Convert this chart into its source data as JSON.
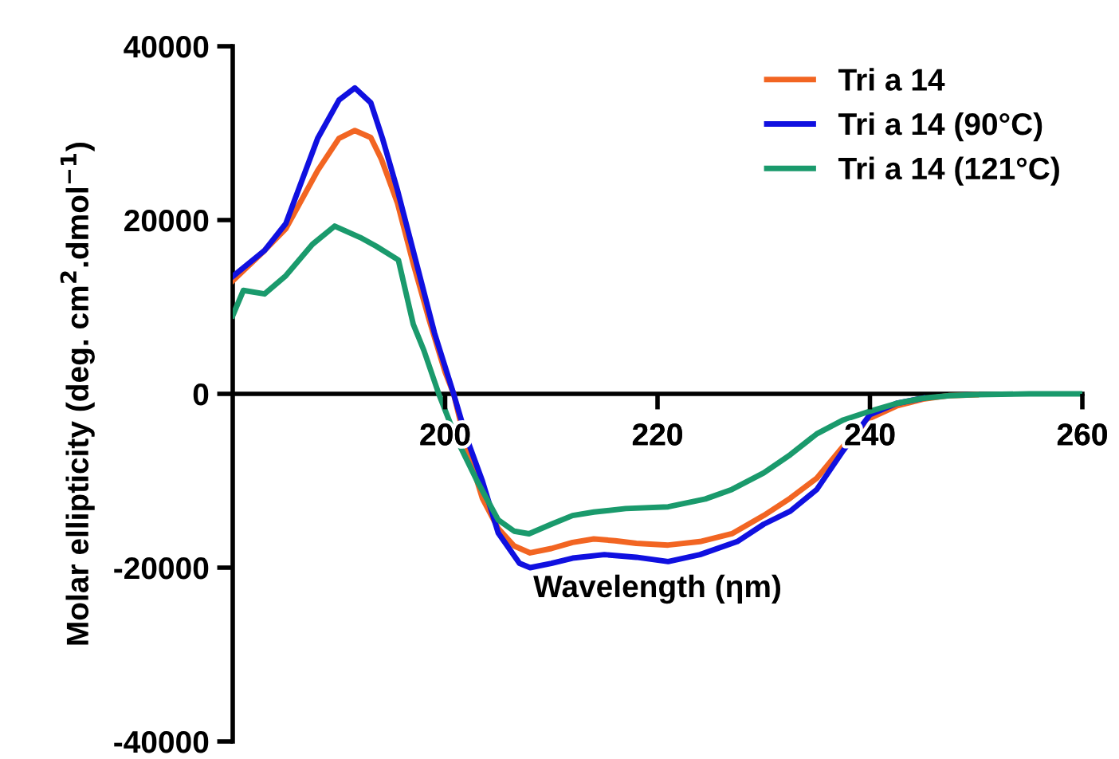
{
  "chart_data": {
    "type": "line",
    "xlabel": "Wavelength (ηm)",
    "ylabel": "Molar ellipticity (deg. cm$^{2}$.dmol$^{−1}$)",
    "xlim": [
      180,
      260
    ],
    "ylim": [
      -40000,
      40000
    ],
    "xticks": [
      200,
      220,
      240,
      260
    ],
    "yticks": [
      -40000,
      -20000,
      0,
      20000,
      40000
    ],
    "grid": false,
    "legend": "top right",
    "marker": "none",
    "line_style": "solid",
    "series": [
      {
        "name": "Tri a 14",
        "color": "#f26522",
        "x": [
          180,
          183,
          185,
          188,
          190,
          191.5,
          193,
          194,
          195.5,
          197,
          198.5,
          200,
          200.8,
          202,
          203.5,
          205,
          206.5,
          208,
          210,
          212,
          214,
          216,
          218,
          221,
          224,
          227,
          230,
          232.5,
          235,
          237.5,
          240,
          242.5,
          245,
          247.5,
          250
        ],
        "values": [
          13000,
          16500,
          19000,
          25700,
          29400,
          30300,
          29500,
          27000,
          22000,
          15000,
          8500,
          2500,
          0,
          -6000,
          -12000,
          -15500,
          -17500,
          -18300,
          -17800,
          -17100,
          -16700,
          -16900,
          -17200,
          -17400,
          -17000,
          -16100,
          -14000,
          -12000,
          -9700,
          -6000,
          -2800,
          -1400,
          -600,
          -200,
          -100
        ]
      },
      {
        "name": "Tri a 14 (90°C)",
        "color": "#1010e0",
        "x": [
          180,
          183,
          185,
          188,
          190,
          191.5,
          193,
          194.1,
          195.5,
          197.5,
          199,
          200.8,
          202,
          203.5,
          205,
          207,
          208,
          210,
          212,
          215,
          218,
          221,
          224,
          227.5,
          230,
          232.5,
          235,
          237.5,
          240,
          242.5,
          245
        ],
        "values": [
          13500,
          16500,
          19600,
          29400,
          33800,
          35200,
          33500,
          29400,
          23500,
          14100,
          7000,
          0,
          -5000,
          -10000,
          -16000,
          -19500,
          -20000,
          -19500,
          -18900,
          -18500,
          -18800,
          -19300,
          -18500,
          -17000,
          -15000,
          -13500,
          -11000,
          -6500,
          -2400,
          -1100,
          -500
        ]
      },
      {
        "name": "Tri a 14 (121°C)",
        "color": "#1a9a6c",
        "x": [
          180,
          181,
          183,
          185,
          187.5,
          189.6,
          192,
          193.5,
          195.6,
          197,
          198,
          199.4,
          201,
          203,
          205,
          206.5,
          207.9,
          210,
          212,
          214,
          217,
          221,
          224.5,
          227,
          230,
          232.5,
          235,
          237.5,
          240,
          242.5,
          245,
          247.5,
          250,
          255,
          260
        ],
        "values": [
          9000,
          11900,
          11500,
          13600,
          17200,
          19300,
          18000,
          17000,
          15400,
          8000,
          5000,
          0,
          -5000,
          -10000,
          -14500,
          -15800,
          -16100,
          -15000,
          -14000,
          -13600,
          -13200,
          -13000,
          -12100,
          -11000,
          -9100,
          -7000,
          -4600,
          -3000,
          -2000,
          -1100,
          -500,
          -200,
          -100,
          0,
          0
        ]
      }
    ]
  }
}
